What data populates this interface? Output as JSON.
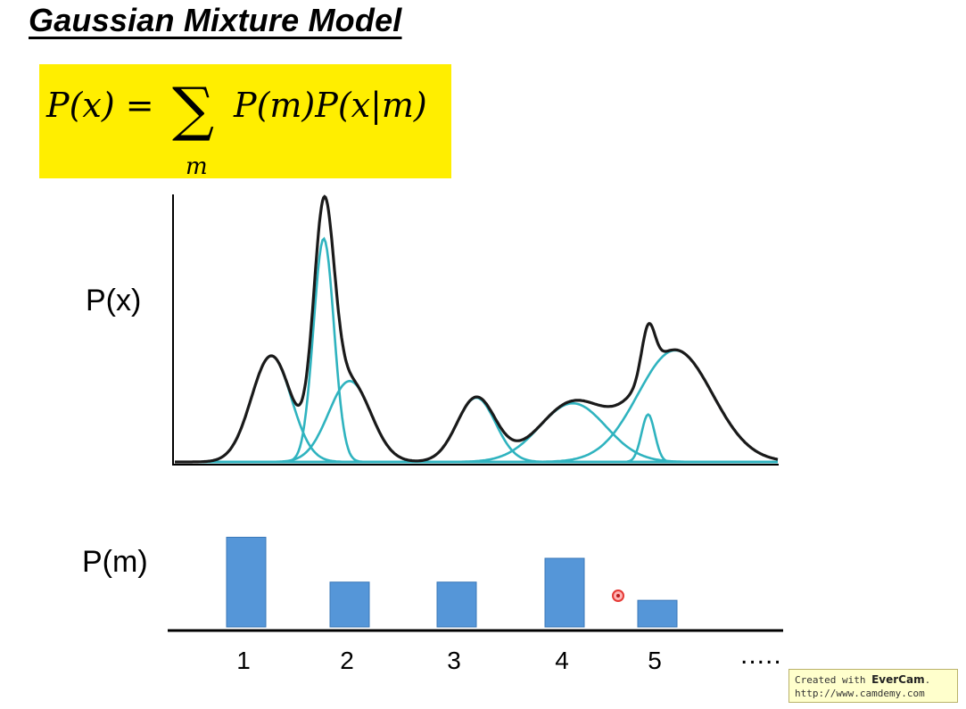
{
  "title": "Gaussian Mixture Model",
  "formula": {
    "lhs": "P(x) =",
    "rhs": "P(m)P(x|m)",
    "sum_symbol": "∑",
    "sum_index": "m"
  },
  "colors": {
    "highlight": "#ffee00",
    "mixture_curve": "#1a1a1a",
    "component_curve": "#2fb3bf",
    "bar": "#5596d8",
    "bar_border": "#3b78b8",
    "cursor": "#e53935"
  },
  "plot_top": {
    "ylabel": "P(x)"
  },
  "chart_data": [
    {
      "type": "line",
      "title": "",
      "ylabel": "P(x)",
      "xlabel": "",
      "xlim": [
        0,
        10
      ],
      "ylim": [
        0,
        1
      ],
      "series": [
        {
          "role": "mixture",
          "peaks_x": [
            1.6,
            2.5,
            5.0,
            6.6,
            8.0
          ]
        }
      ],
      "components": [
        {
          "mean": 1.6,
          "sd": 0.33,
          "height": 0.38
        },
        {
          "mean": 2.47,
          "sd": 0.17,
          "height": 0.8
        },
        {
          "mean": 2.9,
          "sd": 0.35,
          "height": 0.29
        },
        {
          "mean": 5.0,
          "sd": 0.32,
          "height": 0.23
        },
        {
          "mean": 6.6,
          "sd": 0.55,
          "height": 0.21
        },
        {
          "mean": 7.85,
          "sd": 0.11,
          "height": 0.17
        },
        {
          "mean": 8.3,
          "sd": 0.62,
          "height": 0.4
        }
      ]
    },
    {
      "type": "bar",
      "title": "",
      "ylabel": "P(m)",
      "xlabel": "",
      "categories": [
        "1",
        "2",
        "3",
        "4",
        "5"
      ],
      "values": [
        0.32,
        0.16,
        0.16,
        0.245,
        0.095
      ],
      "ylim": [
        0,
        0.35
      ],
      "continuation": "....."
    }
  ],
  "plot_bottom": {
    "ylabel": "P(m)",
    "ellipsis": "....."
  },
  "watermark": {
    "line1_prefix": "Created with ",
    "brand": "EverCam",
    "line1_suffix": ".",
    "line2": "http://www.camdemy.com"
  }
}
